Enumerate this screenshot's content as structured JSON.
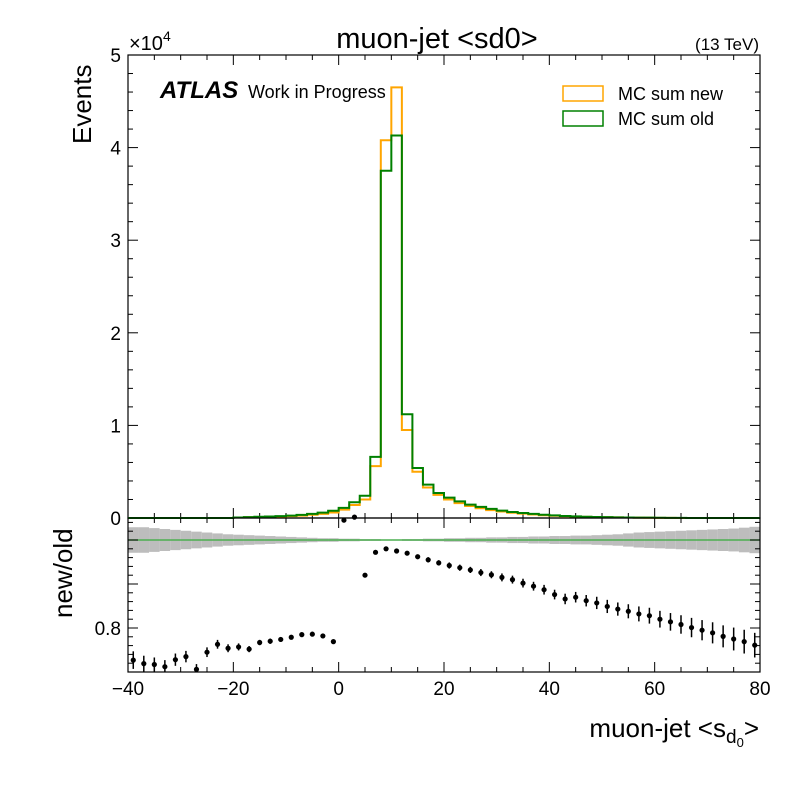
{
  "chart_data": {
    "type": "histogram",
    "title": "muon-jet <sd0>",
    "energy_label": "(13 TeV)",
    "atlas_label": "ATLAS",
    "atlas_sublabel": "Work in Progress",
    "xlabel": "muon-jet <s",
    "xlabel_sub": "d",
    "xlabel_subsub": "0",
    "xlabel_close": ">",
    "xlim": [
      -40,
      80
    ],
    "x_ticks": [
      "−40",
      "−20",
      "0",
      "20",
      "40",
      "60",
      "80"
    ],
    "bin_width": 2,
    "bin_edges_start": -40,
    "main": {
      "ylabel": "Events",
      "y_multiplier": "×10",
      "y_multiplier_exp": "4",
      "ylim": [
        0,
        50000
      ],
      "y_ticks": [
        "0",
        "1",
        "2",
        "3",
        "4",
        "5"
      ],
      "legend": {
        "placement": "top-right",
        "entries": [
          {
            "label": "MC sum new",
            "color": "#FFA500"
          },
          {
            "label": "MC sum old",
            "color": "#008000"
          }
        ]
      },
      "series": [
        {
          "name": "MC sum new",
          "color": "#FFA500",
          "values": [
            0,
            0,
            0,
            0,
            0,
            0,
            0,
            0,
            0,
            0,
            50,
            80,
            100,
            120,
            150,
            200,
            260,
            350,
            450,
            600,
            900,
            1400,
            2000,
            5600,
            40800,
            46500,
            9500,
            5000,
            3300,
            2500,
            2000,
            1600,
            1300,
            1050,
            850,
            700,
            570,
            470,
            380,
            300,
            240,
            190,
            150,
            120,
            100,
            80,
            65,
            50,
            40,
            30,
            20,
            10,
            5,
            0,
            0,
            0,
            0,
            0,
            0,
            0
          ]
        },
        {
          "name": "MC sum old",
          "color": "#008000",
          "values": [
            0,
            0,
            0,
            0,
            0,
            0,
            0,
            0,
            0,
            0,
            60,
            100,
            130,
            160,
            200,
            260,
            340,
            450,
            580,
            780,
            1100,
            1700,
            2400,
            6600,
            37500,
            41300,
            11200,
            5400,
            3600,
            2700,
            2200,
            1800,
            1450,
            1200,
            980,
            800,
            650,
            540,
            440,
            350,
            280,
            220,
            175,
            140,
            110,
            90,
            72,
            58,
            45,
            34,
            24,
            14,
            7,
            0,
            0,
            0,
            0,
            0,
            0,
            0
          ]
        }
      ]
    },
    "ratio": {
      "ylabel": "new/old",
      "ylim": [
        0.7,
        1.05
      ],
      "y_ticks": [
        "0.8"
      ],
      "y_tick_values": [
        0.8
      ],
      "reference_line": 1.0,
      "reference_color": "#4CAF50",
      "band_color": "#BDBDBD",
      "band_halfwidth": [
        0.029,
        0.029,
        0.027,
        0.025,
        0.023,
        0.021,
        0.019,
        0.017,
        0.015,
        0.013,
        0.012,
        0.011,
        0.01,
        0.009,
        0.008,
        0.007,
        0.006,
        0.005,
        0.004,
        0.004,
        0.003,
        0.003,
        0.002,
        0.002,
        0.001,
        0.001,
        0.002,
        0.002,
        0.003,
        0.003,
        0.004,
        0.004,
        0.005,
        0.005,
        0.006,
        0.006,
        0.007,
        0.007,
        0.008,
        0.008,
        0.009,
        0.009,
        0.01,
        0.01,
        0.011,
        0.012,
        0.013,
        0.015,
        0.017,
        0.018,
        0.019,
        0.02,
        0.021,
        0.022,
        0.023,
        0.024,
        0.025,
        0.026,
        0.028,
        0.03
      ],
      "points_x": [
        -39,
        -37,
        -35,
        -33,
        -31,
        -29,
        -27,
        -25,
        -23,
        -21,
        -19,
        -17,
        -15,
        -13,
        -11,
        -9,
        -7,
        -5,
        -3,
        -1,
        1,
        3,
        5,
        7,
        9,
        11,
        13,
        15,
        17,
        19,
        21,
        23,
        25,
        27,
        29,
        31,
        33,
        35,
        37,
        39,
        41,
        43,
        45,
        47,
        49,
        51,
        53,
        55,
        57,
        59,
        61,
        63,
        65,
        67,
        69,
        71,
        73,
        75,
        77,
        79
      ],
      "points_y": [
        0.727,
        0.719,
        0.717,
        0.712,
        0.728,
        0.735,
        0.706,
        0.745,
        0.763,
        0.754,
        0.757,
        0.752,
        0.767,
        0.77,
        0.774,
        0.779,
        0.785,
        0.786,
        0.782,
        0.769,
        1.045,
        1.052,
        0.92,
        0.972,
        0.98,
        0.975,
        0.97,
        0.962,
        0.955,
        0.948,
        0.942,
        0.937,
        0.932,
        0.926,
        0.921,
        0.915,
        0.91,
        0.902,
        0.895,
        0.887,
        0.876,
        0.866,
        0.87,
        0.862,
        0.857,
        0.849,
        0.843,
        0.838,
        0.832,
        0.828,
        0.82,
        0.814,
        0.808,
        0.801,
        0.795,
        0.789,
        0.781,
        0.775,
        0.769,
        0.761
      ],
      "points_err": [
        0.02,
        0.018,
        0.016,
        0.015,
        0.014,
        0.013,
        0.012,
        0.011,
        0.01,
        0.009,
        0.008,
        0.007,
        0.006,
        0.006,
        0.005,
        0.005,
        0.004,
        0.004,
        0.003,
        0.002,
        0.002,
        0.002,
        0.003,
        0.004,
        0.004,
        0.005,
        0.005,
        0.005,
        0.006,
        0.006,
        0.007,
        0.007,
        0.007,
        0.008,
        0.008,
        0.009,
        0.009,
        0.01,
        0.01,
        0.011,
        0.011,
        0.012,
        0.012,
        0.013,
        0.014,
        0.015,
        0.015,
        0.016,
        0.017,
        0.018,
        0.019,
        0.02,
        0.021,
        0.022,
        0.023,
        0.024,
        0.025,
        0.026,
        0.027,
        0.028
      ]
    }
  }
}
